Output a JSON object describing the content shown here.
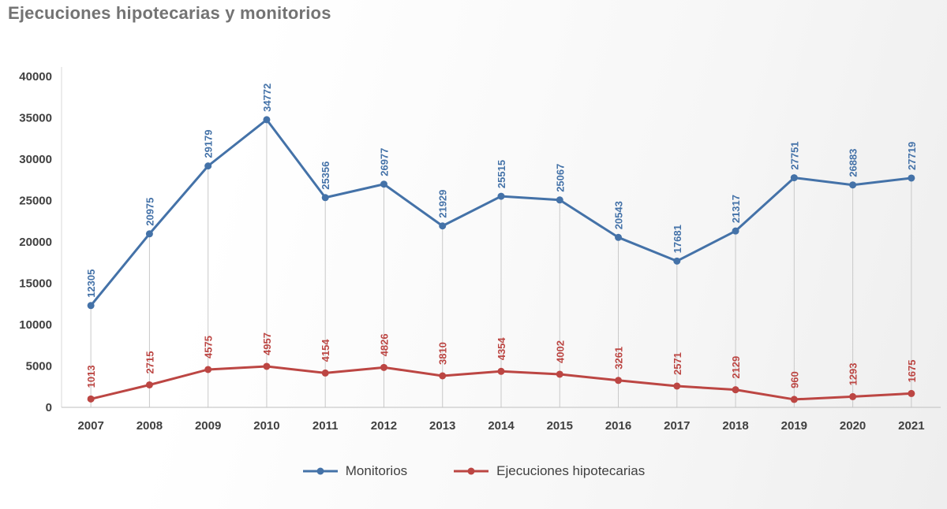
{
  "chart_data": {
    "type": "line",
    "title": "Ejecuciones hipotecarias y monitorios",
    "categories": [
      "2007",
      "2008",
      "2009",
      "2010",
      "2011",
      "2012",
      "2013",
      "2014",
      "2015",
      "2016",
      "2017",
      "2018",
      "2019",
      "2020",
      "2021"
    ],
    "series": [
      {
        "name": "Monitorios",
        "color": "#4472A8",
        "values": [
          12305,
          20975,
          29179,
          34772,
          25356,
          26977,
          21929,
          25515,
          25067,
          20543,
          17681,
          21317,
          27751,
          26883,
          27719
        ]
      },
      {
        "name": "Ejecuciones hipotecarias",
        "color": "#BC4643",
        "values": [
          1013,
          2715,
          4575,
          4957,
          4154,
          4826,
          3810,
          4354,
          4002,
          3261,
          2571,
          2129,
          960,
          1293,
          1675
        ]
      }
    ],
    "ylim": [
      0,
      40000
    ],
    "ytick_step": 5000,
    "grid": false,
    "droplines": true,
    "legend_position": "bottom",
    "axis_label_color": "#404040",
    "axis_line_color": "#bfbfbf",
    "dropline_color": "#c9c9c9"
  }
}
